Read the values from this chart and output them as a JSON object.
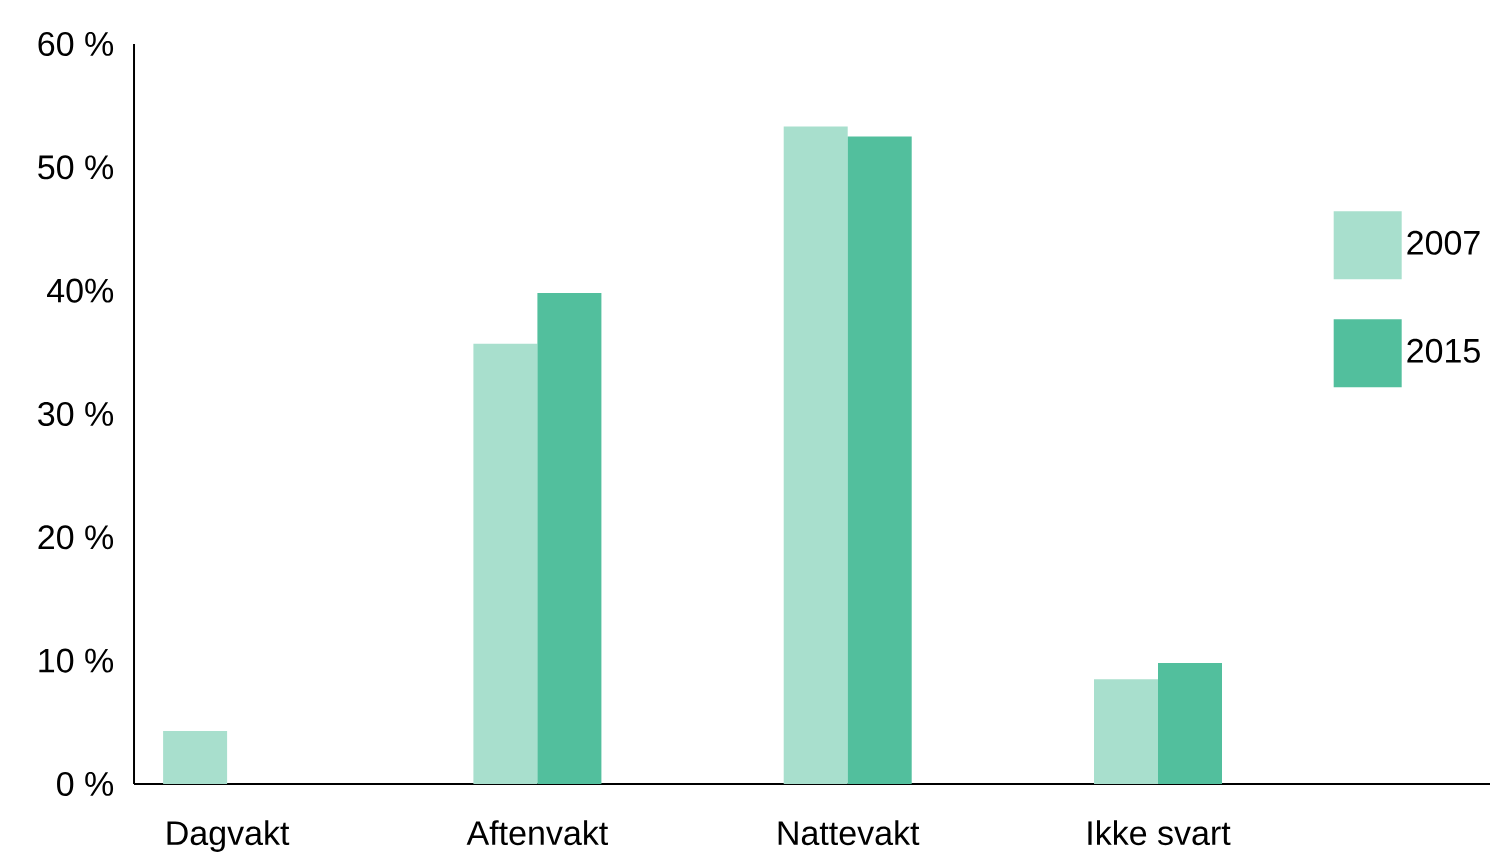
{
  "chart_data": {
    "type": "bar",
    "categories": [
      "Dagvakt",
      "Aftenvakt",
      "Nattevakt",
      "Ikke svart"
    ],
    "series": [
      {
        "name": "2007",
        "color": "#a8dfcd",
        "values": [
          4.3,
          35.7,
          53.3,
          8.5
        ]
      },
      {
        "name": "2015",
        "color": "#52bf9d",
        "values": [
          null,
          39.8,
          52.5,
          9.8
        ]
      }
    ],
    "ylim": [
      0,
      60
    ],
    "yticks": [
      {
        "value": 0,
        "label": "0 %"
      },
      {
        "value": 10,
        "label": "10 %"
      },
      {
        "value": 20,
        "label": "20 %"
      },
      {
        "value": 30,
        "label": "30 %"
      },
      {
        "value": 40,
        "label": "40%"
      },
      {
        "value": 50,
        "label": "50 %"
      },
      {
        "value": 60,
        "label": "60 %"
      }
    ],
    "grid": false,
    "legend": "right"
  }
}
